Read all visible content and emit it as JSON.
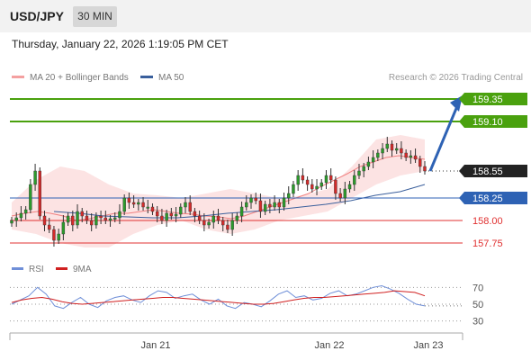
{
  "header": {
    "pair": "USD/JPY",
    "timeframe": "30 MIN"
  },
  "datetime": "Thursday, January 22, 2026 1:19:05 PM CET",
  "legend": {
    "ma20_label": "MA 20 + Bollinger Bands",
    "ma50_label": "MA 50",
    "credit": "Research © 2026 Trading Central"
  },
  "levels": {
    "resistance_2": "159.35",
    "resistance_1": "159.10",
    "last": "158.55",
    "pivot": "158.25",
    "support_1": "158.00",
    "support_2": "157.75"
  },
  "rsi_legend": {
    "rsi_label": "RSI",
    "ma_label": "9MA"
  },
  "rsi_axis": [
    "70",
    "50",
    "30"
  ],
  "x_axis": [
    "Jan 21",
    "Jan 22",
    "Jan 23"
  ],
  "colors": {
    "resistance": "#4aa10e",
    "pivot": "#2e62b4",
    "support": "#e03030",
    "last": "#222222",
    "band": "#fbdede",
    "ma20": "#f08080",
    "ma50": "#3a5f9c",
    "rsi": "#6f8fd8",
    "rsi_ma": "#d02020",
    "up_candle": "#2c9a2c",
    "down_candle": "#d42a2a",
    "arrow": "#2e62b4"
  },
  "chart_data": [
    {
      "type": "candlestick",
      "title": "USD/JPY",
      "timeframe": "30 MIN",
      "y_unit": "JPY",
      "x_ticks": [
        "Jan 21",
        "Jan 22",
        "Jan 23"
      ],
      "levels": [
        {
          "name": "resistance",
          "value": 159.35
        },
        {
          "name": "resistance",
          "value": 159.1
        },
        {
          "name": "last",
          "value": 158.55
        },
        {
          "name": "pivot",
          "value": 158.25
        },
        {
          "name": "support",
          "value": 158.0
        },
        {
          "name": "support",
          "value": 157.75
        }
      ],
      "ylim": [
        157.6,
        159.5
      ],
      "forecast_target": 159.35,
      "closes": [
        158.0,
        158.03,
        158.08,
        158.12,
        158.4,
        158.55,
        158.05,
        157.95,
        157.9,
        157.78,
        157.85,
        157.98,
        158.05,
        157.95,
        158.1,
        158.05,
        158.0,
        157.95,
        158.05,
        158.03,
        158.0,
        158.02,
        158.03,
        158.1,
        158.25,
        158.2,
        158.18,
        158.2,
        158.15,
        158.15,
        158.1,
        158.05,
        158.0,
        158.08,
        158.05,
        158.07,
        158.15,
        158.2,
        158.1,
        158.05,
        158.0,
        157.95,
        157.98,
        158.05,
        158.0,
        157.95,
        157.9,
        158.0,
        158.05,
        158.15,
        158.2,
        158.25,
        158.22,
        158.1,
        158.18,
        158.15,
        158.2,
        158.15,
        158.25,
        158.3,
        158.4,
        158.5,
        158.45,
        158.4,
        158.35,
        158.38,
        158.42,
        158.5,
        158.45,
        158.3,
        158.25,
        158.35,
        158.4,
        158.5,
        158.55,
        158.6,
        158.65,
        158.7,
        158.75,
        158.8,
        158.85,
        158.78,
        158.8,
        158.75,
        158.7,
        158.72,
        158.68,
        158.6,
        158.55
      ],
      "ma20": [
        158.05,
        158.08,
        158.1,
        158.08,
        158.05,
        158.0,
        158.02,
        158.05,
        158.08,
        158.08,
        158.1,
        158.12,
        158.1,
        158.08,
        158.07,
        158.05,
        158.04,
        158.02,
        158.05,
        158.1,
        158.15,
        158.2,
        158.25,
        158.3,
        158.38,
        158.45,
        158.52,
        158.6,
        158.65,
        158.7,
        158.72,
        158.7,
        158.68
      ],
      "ma50": [
        158.1,
        158.08,
        158.05,
        158.04,
        158.03,
        158.03,
        158.05,
        158.08,
        158.1,
        158.12,
        158.15,
        158.18,
        158.22,
        158.28,
        158.32,
        158.4
      ],
      "bollinger_upper": [
        158.2,
        158.45,
        158.6,
        158.55,
        158.4,
        158.3,
        158.28,
        158.25,
        158.3,
        158.35,
        158.3,
        158.25,
        158.28,
        158.35,
        158.6,
        158.9,
        158.95,
        158.9
      ],
      "bollinger_lower": [
        157.9,
        157.85,
        157.75,
        157.7,
        157.7,
        157.85,
        157.95,
        158.0,
        157.9,
        157.85,
        157.9,
        158.0,
        158.05,
        158.1,
        158.25,
        158.4,
        158.5,
        158.55
      ]
    },
    {
      "type": "line",
      "title": "RSI",
      "series": [
        {
          "name": "RSI",
          "values": [
            50,
            55,
            60,
            70,
            62,
            48,
            45,
            52,
            58,
            50,
            46,
            54,
            58,
            60,
            55,
            52,
            60,
            66,
            64,
            57,
            60,
            62,
            55,
            50,
            56,
            48,
            45,
            52,
            50,
            47,
            54,
            62,
            66,
            58,
            60,
            55,
            57,
            63,
            66,
            60,
            62,
            66,
            70,
            72,
            68,
            63,
            56,
            50,
            48
          ]
        },
        {
          "name": "9MA",
          "values": [
            52,
            55,
            57,
            58,
            56,
            53,
            51,
            50,
            51,
            52,
            53,
            54,
            55,
            56,
            57,
            58,
            58,
            57,
            56,
            55,
            54,
            53,
            52,
            51,
            50,
            50,
            51,
            53,
            55,
            57,
            58,
            58,
            59,
            60,
            61,
            62,
            63,
            64,
            66,
            65,
            64,
            60
          ]
        }
      ],
      "y_ticks": [
        70,
        50,
        30
      ],
      "ylim": [
        20,
        80
      ]
    }
  ]
}
